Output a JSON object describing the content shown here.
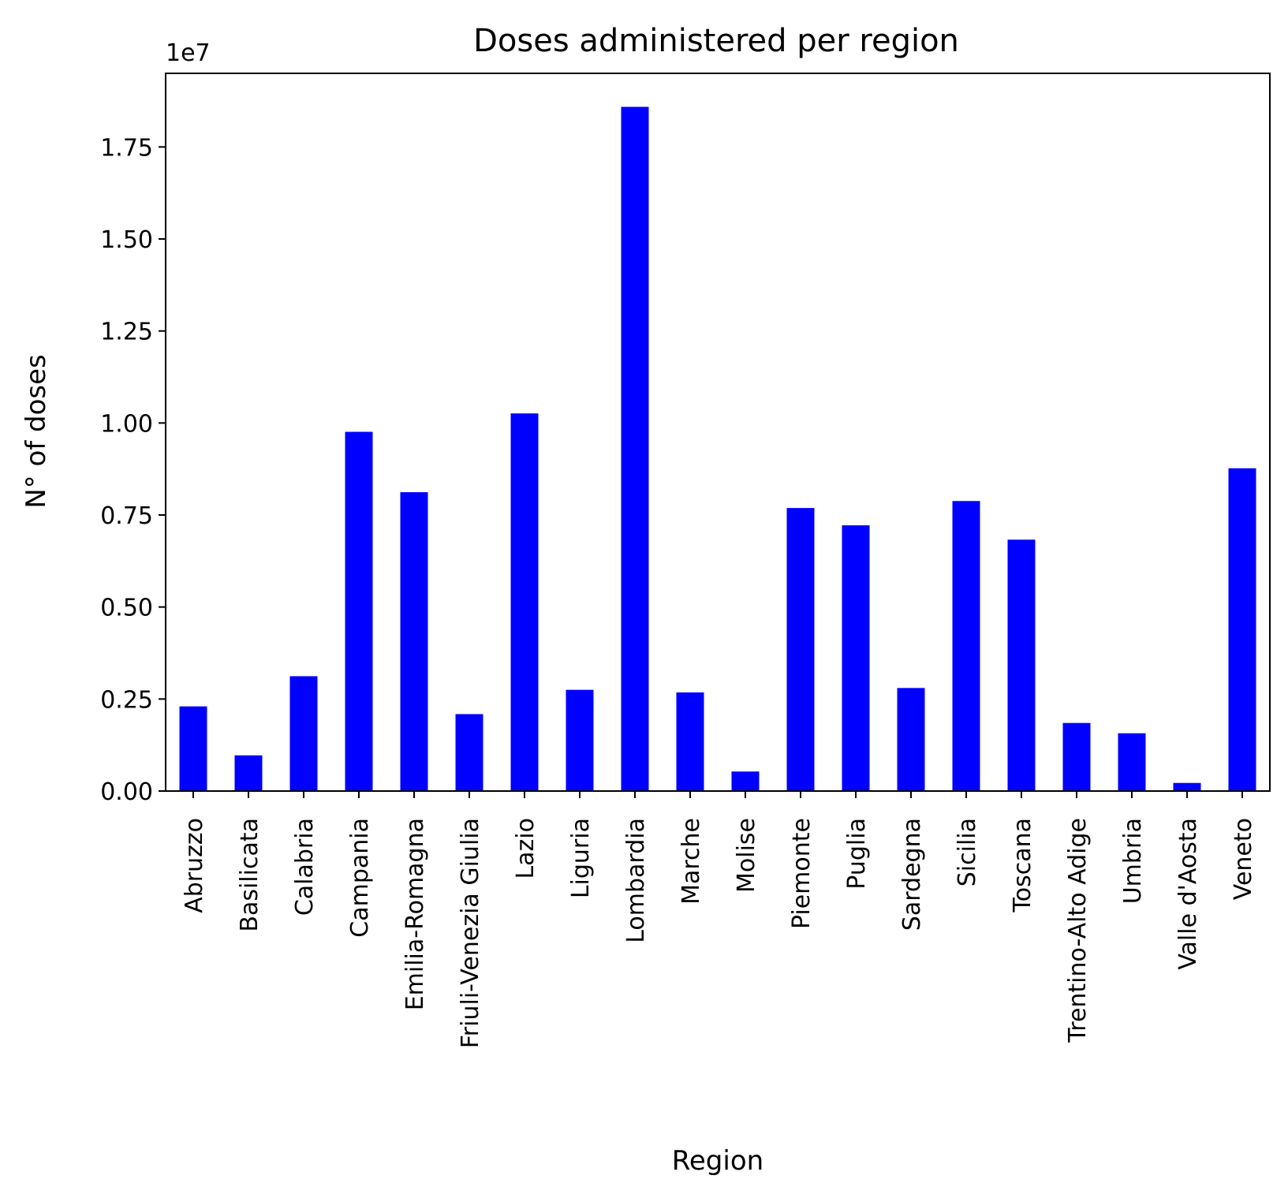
{
  "chart_data": {
    "type": "bar",
    "title": "Doses administered per region",
    "xlabel": "Region",
    "ylabel": "N° of doses",
    "y_offset_label": "1e7",
    "y_multiplier": 10000000,
    "ylim": [
      0,
      19500000
    ],
    "yticks": [
      0,
      2500000,
      5000000,
      7500000,
      10000000,
      12500000,
      15000000,
      17500000
    ],
    "ytick_labels": [
      "0.00",
      "0.25",
      "0.50",
      "0.75",
      "1.00",
      "1.25",
      "1.50",
      "1.75"
    ],
    "categories": [
      "Abruzzo",
      "Basilicata",
      "Calabria",
      "Campania",
      "Emilia-Romagna",
      "Friuli-Venezia Giulia",
      "Lazio",
      "Liguria",
      "Lombardia",
      "Marche",
      "Molise",
      "Piemonte",
      "Puglia",
      "Sardegna",
      "Sicilia",
      "Toscana",
      "Trentino-Alto Adige",
      "Umbria",
      "Valle d'Aosta",
      "Veneto"
    ],
    "values": [
      2300000,
      970000,
      3120000,
      9760000,
      8120000,
      2090000,
      10260000,
      2750000,
      18590000,
      2680000,
      530000,
      7690000,
      7220000,
      2800000,
      7880000,
      6830000,
      1850000,
      1570000,
      220000,
      8770000
    ],
    "bar_color": "#0000ff",
    "grid": false,
    "legend": "none"
  }
}
